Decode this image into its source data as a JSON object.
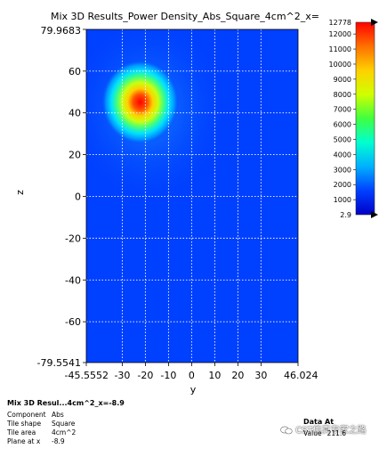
{
  "chart_data": {
    "type": "heatmap",
    "title": "Mix 3D Results_Power Density_Abs_Square_4cm^2_x=",
    "xlabel": "y",
    "ylabel": "z",
    "xlim": [
      -45.5552,
      46.024
    ],
    "ylim": [
      -79.5541,
      79.9683
    ],
    "x_ticks": [
      -45.5552,
      -30,
      -20,
      -10,
      0,
      10,
      20,
      30,
      46.024
    ],
    "x_tick_labels": [
      "-45.5552",
      "-30",
      "-20",
      "-10",
      "0",
      "10",
      "20",
      "30",
      "46.024"
    ],
    "y_ticks": [
      79.9683,
      60,
      40,
      20,
      0,
      -20,
      -40,
      -60,
      -79.5541
    ],
    "y_tick_labels": [
      "79.9683",
      "60",
      "40",
      "20",
      "0",
      "-20",
      "-40",
      "-60",
      "-79.5541"
    ],
    "grid": true,
    "colorbar": {
      "min": 2.9,
      "max": 12778,
      "ticks": [
        12000,
        11000,
        10000,
        9000,
        8000,
        7000,
        6000,
        5000,
        4000,
        3000,
        2000,
        1000
      ],
      "tick_labels": [
        "12000",
        "11000",
        "10000",
        "9000",
        "8000",
        "7000",
        "6000",
        "5000",
        "4000",
        "3000",
        "2000",
        "1000"
      ],
      "max_label": "12778",
      "min_label": "2.9",
      "colors": [
        "#0000c8",
        "#0040ff",
        "#00b0ff",
        "#00ffd0",
        "#40ff40",
        "#d0ff00",
        "#ffd000",
        "#ff7000",
        "#ff0000"
      ]
    },
    "peak": {
      "y": -23,
      "z": 46,
      "value": 12778
    }
  },
  "info": {
    "title": "Mix 3D Resul...4cm^2_x=-8.9",
    "rows": [
      {
        "label": "Component",
        "value": "Abs"
      },
      {
        "label": "Tile shape",
        "value": "Square"
      },
      {
        "label": "Tile area",
        "value": "4cm^2"
      },
      {
        "label": "Plane at x",
        "value": "-8.9"
      }
    ],
    "data_at_label": "Data At",
    "value_label": "Value",
    "value": "211.6"
  },
  "watermark": "CST仿真专家之路"
}
